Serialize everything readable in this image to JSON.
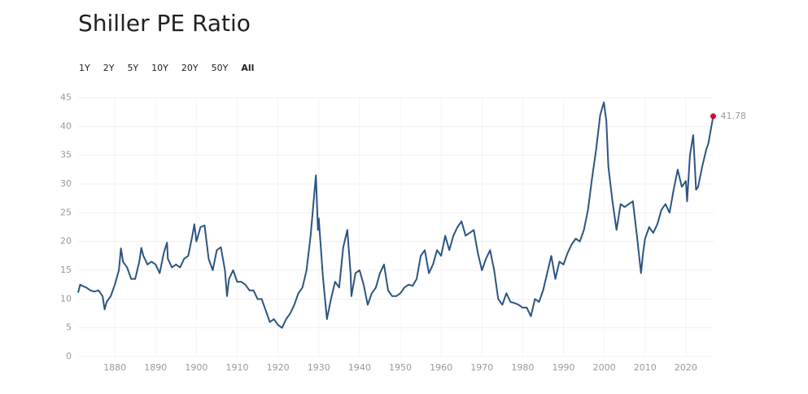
{
  "chart_data": {
    "type": "line",
    "title": "Shiller PE Ratio",
    "range_buttons": [
      "1Y",
      "2Y",
      "5Y",
      "10Y",
      "20Y",
      "50Y",
      "All"
    ],
    "active_range": 6,
    "x": [
      1871,
      1871.5,
      1872,
      1873,
      1874,
      1875,
      1876,
      1877,
      1877.5,
      1878,
      1879,
      1880,
      1881,
      1881.5,
      1882,
      1883,
      1884,
      1885,
      1886,
      1886.5,
      1887,
      1888,
      1889,
      1890,
      1891,
      1892,
      1892.8,
      1893,
      1894,
      1895,
      1896,
      1897,
      1898,
      1899,
      1899.5,
      1900,
      1901,
      1902,
      1903,
      1904,
      1905,
      1906,
      1907,
      1907.5,
      1908,
      1909,
      1910,
      1911,
      1912,
      1913,
      1914,
      1915,
      1916,
      1917,
      1918,
      1919,
      1920,
      1921,
      1922,
      1923,
      1924,
      1925,
      1926,
      1927,
      1928,
      1929.3,
      1929.8,
      1930,
      1931,
      1932,
      1933,
      1934,
      1935,
      1936,
      1937,
      1937.8,
      1938,
      1939,
      1940,
      1941,
      1942,
      1943,
      1944,
      1945,
      1946,
      1947,
      1948,
      1949,
      1950,
      1951,
      1952,
      1953,
      1954,
      1955,
      1956,
      1957,
      1958,
      1959,
      1960,
      1961,
      1962,
      1963,
      1964,
      1965,
      1966,
      1967,
      1968,
      1969,
      1970,
      1971,
      1972,
      1973,
      1974,
      1975,
      1976,
      1977,
      1978,
      1979,
      1980,
      1981,
      1982,
      1983,
      1984,
      1985,
      1986,
      1987,
      1988,
      1989,
      1990,
      1991,
      1992,
      1993,
      1994,
      1995,
      1996,
      1997,
      1998,
      1999,
      1999.9,
      2000.5,
      2001,
      2002,
      2003,
      2004,
      2005,
      2006,
      2007,
      2008,
      2009,
      2009.5,
      2010,
      2011,
      2012,
      2013,
      2014,
      2015,
      2016,
      2017,
      2018,
      2019,
      2020,
      2020.3,
      2021,
      2021.8,
      2022.5,
      2023,
      2024,
      2025,
      2025.5,
      2026.7
    ],
    "series": [
      {
        "name": "Shiller PE Ratio",
        "color": "#2d5580",
        "values": [
          11.1,
          12.5,
          12.3,
          12,
          11.5,
          11.3,
          11.5,
          10.5,
          8.2,
          9.5,
          10.5,
          12.5,
          15,
          18.8,
          16.5,
          15.5,
          13.5,
          13.5,
          16.5,
          18.9,
          17.5,
          16,
          16.5,
          16,
          14.5,
          18,
          19.8,
          17,
          15.5,
          16,
          15.5,
          17,
          17.5,
          21,
          23,
          20,
          22.5,
          22.8,
          17,
          15,
          18.5,
          19,
          15,
          10.5,
          13.5,
          15,
          13,
          13,
          12.5,
          11.5,
          11.5,
          10,
          10,
          8,
          6,
          6.5,
          5.5,
          5,
          6.5,
          7.5,
          9,
          11,
          12,
          15,
          21,
          31.5,
          22,
          24,
          14,
          6.5,
          10,
          13,
          12,
          19,
          22,
          14.5,
          10.5,
          14.5,
          15,
          12.5,
          9,
          11,
          12,
          14.5,
          16,
          11.5,
          10.5,
          10.5,
          11,
          12,
          12.5,
          12.3,
          13.5,
          17.5,
          18.5,
          14.5,
          16,
          18.5,
          17.5,
          21,
          18.5,
          21,
          22.5,
          23.5,
          21,
          21.5,
          22,
          18,
          15,
          17,
          18.5,
          15,
          10,
          9,
          11,
          9.5,
          9.3,
          9,
          8.5,
          8.5,
          7,
          10,
          9.5,
          11.5,
          14.5,
          17.5,
          13.5,
          16.5,
          16,
          18,
          19.5,
          20.5,
          20,
          22,
          25.5,
          31,
          36,
          42,
          44.2,
          41,
          33,
          27,
          22,
          26.5,
          26,
          26.5,
          27,
          21,
          14.5,
          18,
          20.5,
          22.5,
          21.5,
          23,
          25.5,
          26.5,
          25,
          29,
          32.5,
          29.5,
          30.5,
          27,
          35,
          38.5,
          29,
          29.5,
          33,
          36,
          37,
          41.78
        ]
      }
    ],
    "xlim": [
      1871,
      2026.8
    ],
    "ylim": [
      0,
      45
    ],
    "xticks": [
      1880,
      1890,
      1900,
      1910,
      1920,
      1930,
      1940,
      1950,
      1960,
      1970,
      1980,
      1990,
      2000,
      2010,
      2020
    ],
    "yticks": [
      0,
      5,
      10,
      15,
      20,
      25,
      30,
      35,
      40,
      45
    ],
    "grid": true,
    "last_point_color": "#c8102e"
  }
}
